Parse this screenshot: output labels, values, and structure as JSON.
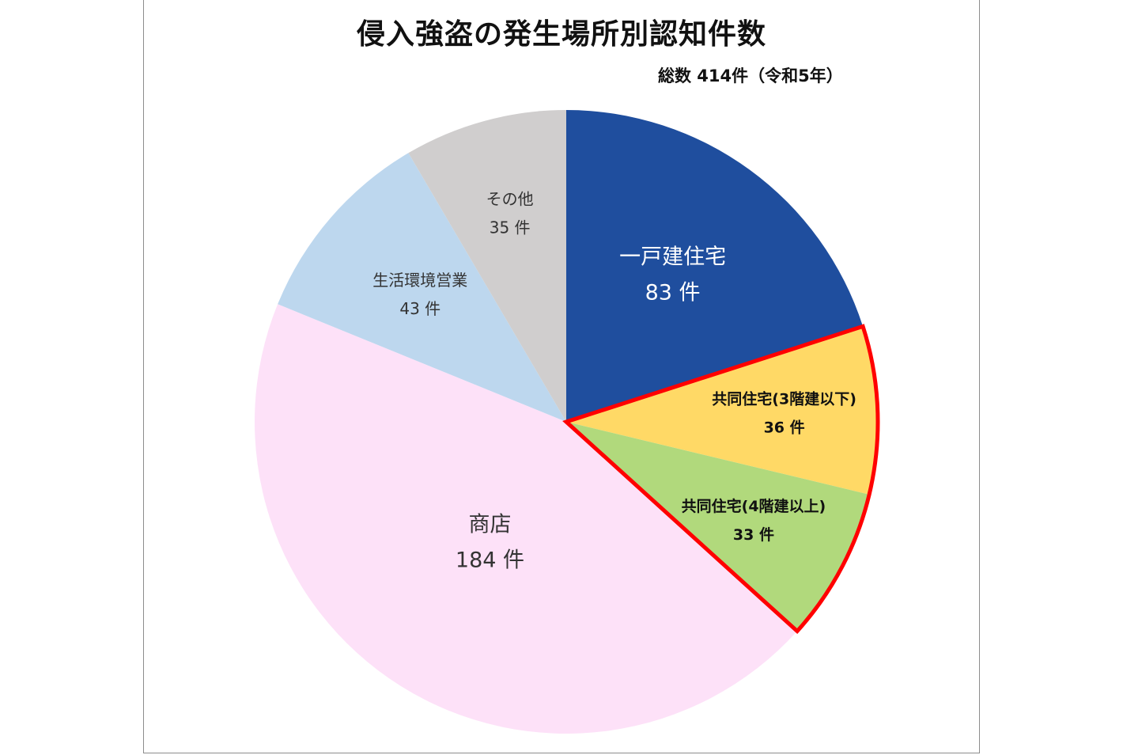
{
  "chart_data": {
    "type": "pie",
    "title": "侵入強盗の発生場所別認知件数",
    "subtitle": "総数 414件（令和5年）",
    "unit": "件",
    "start_angle_deg": 0,
    "direction": "clockwise",
    "slices": [
      {
        "name": "一戸建住宅",
        "value": 83,
        "value_label": "83 件",
        "color": "#1f4e9e",
        "text_color": "#ffffff",
        "bold": false,
        "highlighted": false
      },
      {
        "name": "共同住宅(3階建以下)",
        "value": 36,
        "value_label": "36 件",
        "color": "#ffd966",
        "text_color": "#111111",
        "bold": true,
        "highlighted": true
      },
      {
        "name": "共同住宅(4階建以上)",
        "value": 33,
        "value_label": "33 件",
        "color": "#b1d97c",
        "text_color": "#111111",
        "bold": true,
        "highlighted": true
      },
      {
        "name": "商店",
        "value": 184,
        "value_label": "184 件",
        "color": "#fde1f8",
        "text_color": "#333333",
        "bold": false,
        "highlighted": false
      },
      {
        "name": "生活環境営業",
        "value": 43,
        "value_label": "43 件",
        "color": "#bdd7ee",
        "text_color": "#333333",
        "bold": false,
        "highlighted": false
      },
      {
        "name": "その他",
        "value": 35,
        "value_label": "35 件",
        "color": "#d0cece",
        "text_color": "#333333",
        "bold": false,
        "highlighted": false
      }
    ],
    "highlight_outline_color": "#ff0000",
    "legend": "none"
  }
}
